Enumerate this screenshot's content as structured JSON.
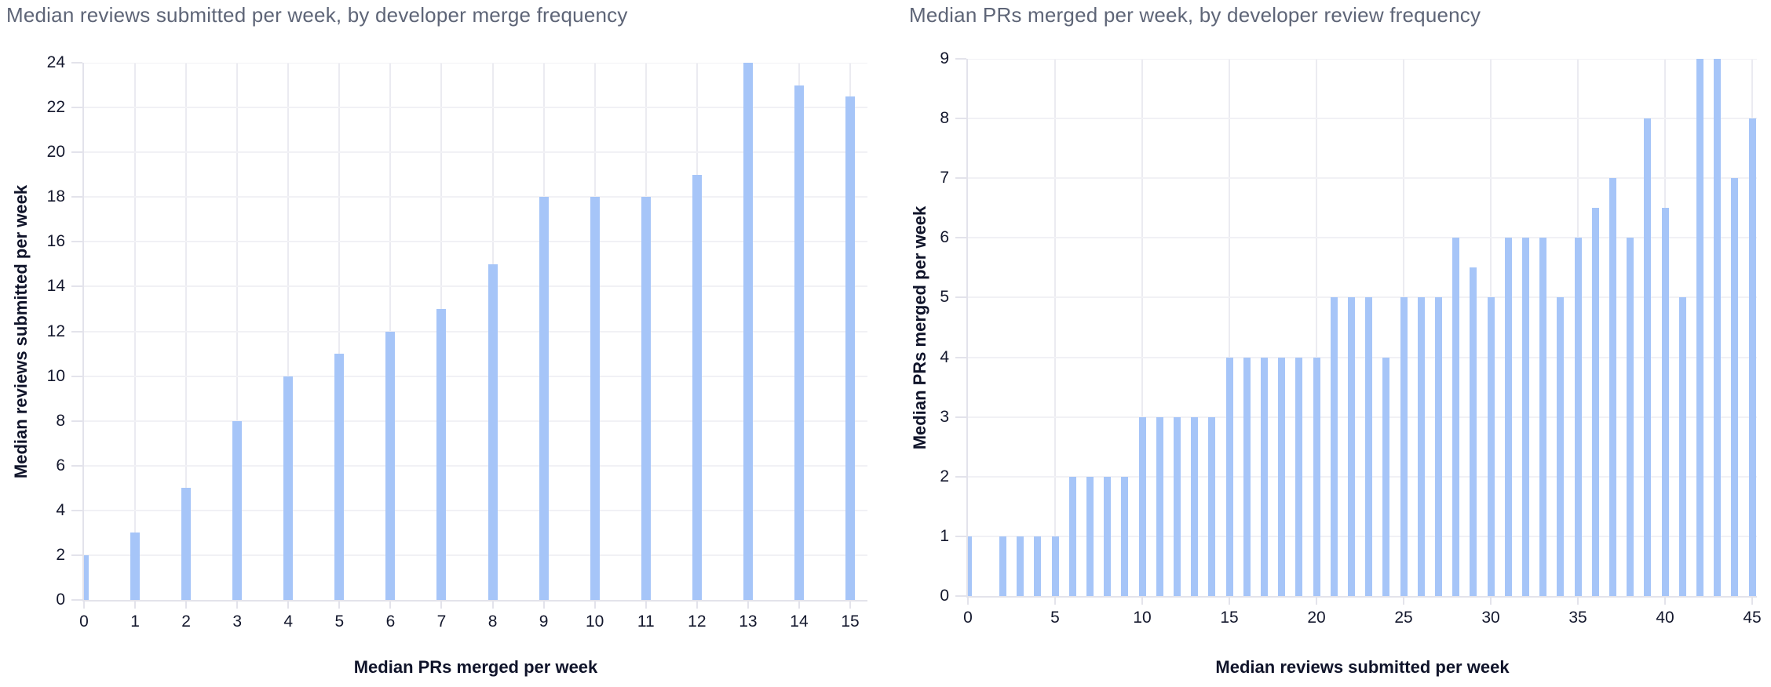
{
  "colors": {
    "bar": "#a6c5f8",
    "grid_vertical": "#ebebf1",
    "grid_horizontal": "#f1f1f5",
    "axis_line": "#e3e3eb",
    "tick_label": "#14182d",
    "axis_title": "#10142a",
    "chart_title": "#5e6577",
    "background": "#ffffff"
  },
  "chart_data": [
    {
      "type": "bar",
      "title": "Median reviews submitted per week, by developer merge frequency",
      "xlabel": "Median PRs merged per week",
      "ylabel": "Median reviews submitted per week",
      "x": [
        0,
        1,
        2,
        3,
        4,
        5,
        6,
        7,
        8,
        9,
        10,
        11,
        12,
        13,
        14,
        15
      ],
      "values": [
        2,
        3,
        5,
        8,
        10,
        11,
        12,
        13,
        15,
        18,
        18,
        18,
        19,
        24,
        23,
        22.5
      ],
      "x_ticks": [
        0,
        1,
        2,
        3,
        4,
        5,
        6,
        7,
        8,
        9,
        10,
        11,
        12,
        13,
        14,
        15
      ],
      "y_ticks": [
        0,
        2,
        4,
        6,
        8,
        10,
        12,
        14,
        16,
        18,
        20,
        22,
        24
      ],
      "xlim": [
        0,
        15.35
      ],
      "ylim": [
        0,
        24
      ],
      "grid": true,
      "legend": "none"
    },
    {
      "type": "bar",
      "title": "Median PRs merged per week, by developer review frequency",
      "xlabel": "Median reviews submitted per week",
      "ylabel": "Median PRs merged per week",
      "x": [
        0,
        1,
        2,
        3,
        4,
        5,
        6,
        7,
        8,
        9,
        10,
        11,
        12,
        13,
        14,
        15,
        16,
        17,
        18,
        19,
        20,
        21,
        22,
        23,
        24,
        25,
        26,
        27,
        28,
        29,
        30,
        31,
        32,
        33,
        34,
        35,
        36,
        37,
        38,
        39,
        40,
        41,
        42,
        43,
        44,
        45
      ],
      "values": [
        1,
        null,
        1,
        1,
        1,
        1,
        2,
        2,
        2,
        2,
        3,
        3,
        3,
        3,
        3,
        4,
        4,
        4,
        4,
        4,
        4,
        5,
        5,
        5,
        4,
        5,
        5,
        5,
        6,
        5.5,
        5,
        6,
        6,
        6,
        5,
        6,
        6.5,
        7,
        6,
        8,
        6.5,
        5,
        9,
        9,
        7,
        8
      ],
      "x_ticks": [
        0,
        5,
        10,
        15,
        20,
        25,
        30,
        35,
        40,
        45
      ],
      "y_ticks": [
        0,
        1,
        2,
        3,
        4,
        5,
        6,
        7,
        8,
        9
      ],
      "xlim": [
        0,
        45.25
      ],
      "ylim": [
        0,
        9
      ],
      "grid": true,
      "legend": "none"
    }
  ]
}
